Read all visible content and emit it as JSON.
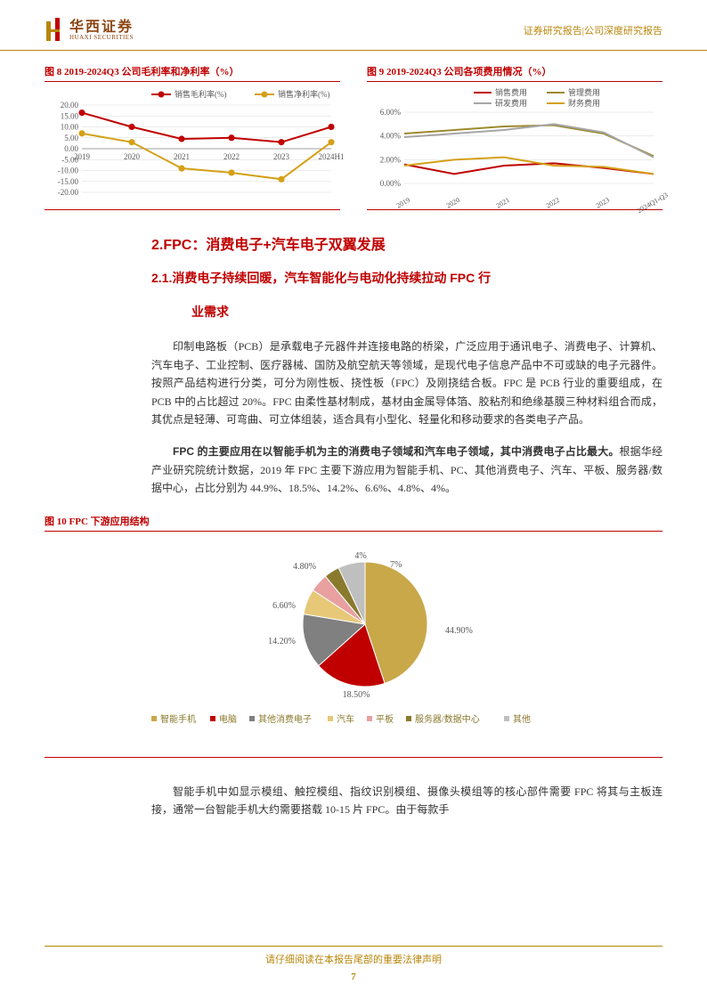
{
  "header": {
    "logo_cn": "华西证券",
    "logo_en": "HUAXI SECURITIES",
    "right_text": "证券研究报告|公司深度研究报告",
    "logo_colors": {
      "left_bar": "#b8860b",
      "right_bar": "#c00000"
    }
  },
  "chart8": {
    "type": "line",
    "title": "图 8 2019-2024Q3 公司毛利率和净利率（%）",
    "categories": [
      "2019",
      "2020",
      "2021",
      "2022",
      "2023",
      "2024H1"
    ],
    "series": [
      {
        "name": "销售毛利率(%)",
        "color": "#c00000",
        "marker": "circle",
        "values": [
          16.5,
          10.0,
          4.5,
          5.0,
          3.0,
          10.0
        ]
      },
      {
        "name": "销售净利率(%)",
        "color": "#d4a017",
        "marker": "circle",
        "values": [
          7.0,
          3.0,
          -9.0,
          -11.0,
          -14.0,
          3.0
        ]
      }
    ],
    "ylim": [
      -20,
      20
    ],
    "ytick_step": 5,
    "grid_color": "#d9d9d9",
    "axis_fontsize": 9,
    "legend_fontsize": 9,
    "line_width": 2,
    "marker_size": 5
  },
  "chart9": {
    "type": "line",
    "title": "图 9 2019-2024Q3 公司各项费用情况（%）",
    "categories": [
      "2019",
      "2020",
      "2021",
      "2022",
      "2023",
      "2024Q1-Q3"
    ],
    "series": [
      {
        "name": "销售费用",
        "color": "#c00000",
        "values": [
          1.6,
          0.8,
          1.5,
          1.7,
          1.3,
          0.8
        ]
      },
      {
        "name": "管理费用",
        "color": "#9c8a2e",
        "values": [
          4.2,
          4.5,
          4.8,
          4.9,
          4.2,
          2.3
        ]
      },
      {
        "name": "研发费用",
        "color": "#a6a6a6",
        "values": [
          3.9,
          4.2,
          4.5,
          5.0,
          4.3,
          2.2
        ]
      },
      {
        "name": "财务费用",
        "color": "#d4a017",
        "values": [
          1.5,
          2.0,
          2.2,
          1.5,
          1.4,
          0.8
        ]
      }
    ],
    "ylim": [
      0,
      6
    ],
    "ytick_step": 2,
    "ytick_format": "percent",
    "grid_color": "#d9d9d9",
    "axis_fontsize": 9,
    "legend_fontsize": 9,
    "line_width": 2
  },
  "section": {
    "title": "2.FPC：消费电子+汽车电子双翼发展",
    "sub_title_l1": "2.1.消费电子持续回暖，汽车智能化与电动化持续拉动 FPC 行",
    "sub_title_l2": "业需求"
  },
  "paragraphs": {
    "p1": "印制电路板（PCB）是承载电子元器件并连接电路的桥梁，广泛应用于通讯电子、消费电子、计算机、汽车电子、工业控制、医疗器械、国防及航空航天等领域，是现代电子信息产品中不可或缺的电子元器件。按照产品结构进行分类，可分为刚性板、挠性板（FPC）及刚挠结合板。FPC 是 PCB 行业的重要组成，在 PCB 中的占比超过 20%。FPC 由柔性基材制成，基材由金属导体箔、胶粘剂和绝缘基膜三种材料组合而成，其优点是轻薄、可弯曲、可立体组装，适合具有小型化、轻量化和移动要求的各类电子产品。",
    "p2_bold": "FPC 的主要应用在以智能手机为主的消费电子领域和汽车电子领域，其中消费电子占比最大。",
    "p2_rest": "根据华经产业研究院统计数据，2019 年 FPC 主要下游应用为智能手机、PC、其他消费电子、汽车、平板、服务器/数据中心，占比分别为 44.9%、18.5%、14.2%、6.6%、4.8%、4%。",
    "p3": "智能手机中如显示模组、触控模组、指纹识别模组、摄像头模组等的核心部件需要 FPC 将其与主板连接，通常一台智能手机大约需要搭载 10-15 片 FPC。由于每款手"
  },
  "chart10": {
    "type": "pie",
    "title": "图 10   FPC 下游应用结构",
    "slices": [
      {
        "label": "智能手机",
        "value": 44.9,
        "display": "44.90%",
        "color": "#c9a84a"
      },
      {
        "label": "电脑",
        "value": 18.5,
        "display": "18.50%",
        "color": "#c00000"
      },
      {
        "label": "其他消费电子",
        "value": 14.2,
        "display": "14.20%",
        "color": "#808080"
      },
      {
        "label": "汽车",
        "value": 6.6,
        "display": "6.60%",
        "color": "#e6c878"
      },
      {
        "label": "平板",
        "value": 4.8,
        "display": "4.80%",
        "color": "#e8a0a0"
      },
      {
        "label": "服务器/数据中心",
        "value": 4.0,
        "display": "4%",
        "color": "#8a7a2e"
      },
      {
        "label": "其他",
        "value": 7.0,
        "display": "7%",
        "color": "#bfbfbf"
      }
    ],
    "legend_fontsize": 10,
    "label_fontsize": 10,
    "legend_marker": "square",
    "legend_marker_color": "#c9a84a",
    "radius": 70
  },
  "footer": {
    "note": "请仔细阅读在本报告尾部的重要法律声明",
    "page": "7"
  }
}
